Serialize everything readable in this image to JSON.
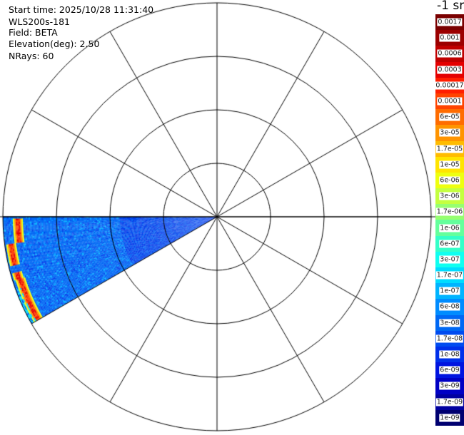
{
  "header": {
    "start_time": "Start time: 2025/10/28 11:31:40",
    "instrument": "WLS200s-181",
    "field": "Field: BETA",
    "elevation": "Elevation(deg): 2.50",
    "nrays": "NRays: 60"
  },
  "chart_data": {
    "type": "heatmap",
    "projection": "polar",
    "field": "BETA",
    "scan_azimuth_range_deg": [
      240,
      270
    ],
    "range_rings": 4,
    "spoke_interval_deg": 30,
    "color_scale": "log",
    "colorbar": {
      "title": "-1 sr-",
      "ticks": [
        "0.0017",
        "0.001",
        "0.0006",
        "0.0003",
        "0.00017",
        "0.0001",
        "6e-05",
        "3e-05",
        "1.7e-05",
        "1e-05",
        "6e-06",
        "3e-06",
        "1.7e-06",
        "1e-06",
        "6e-07",
        "3e-07",
        "1.7e-07",
        "1e-07",
        "6e-08",
        "3e-08",
        "1.7e-08",
        "1e-08",
        "6e-09",
        "3e-09",
        "1.7e-09",
        "1e-09"
      ],
      "colors": [
        "#7a0000",
        "#9c0000",
        "#c00000",
        "#e40000",
        "#ff1e00",
        "#ff4400",
        "#ff6c00",
        "#ff9400",
        "#ffbc00",
        "#ffe400",
        "#eeff10",
        "#c4ff40",
        "#96ff70",
        "#64ff9c",
        "#34ffc8",
        "#10fff0",
        "#00dcff",
        "#00b4ff",
        "#008cff",
        "#0068f4",
        "#004cf0",
        "#0030ea",
        "#0014e0",
        "#0000c4",
        "#0000a0",
        "#000070"
      ]
    },
    "typical_value": "3e-08",
    "high_value_band": "1e-04"
  }
}
